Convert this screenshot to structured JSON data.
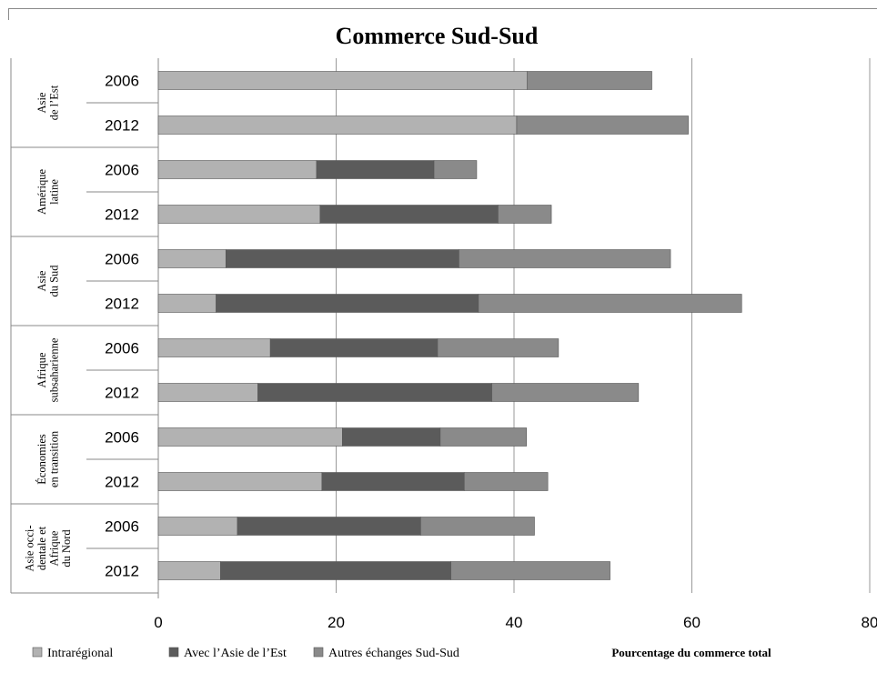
{
  "chart_data": {
    "type": "bar",
    "orientation": "horizontal",
    "stacked": true,
    "title": "Commerce Sud-Sud",
    "xlabel": "Pourcentage du commerce total",
    "xlim": [
      0,
      80
    ],
    "xticks": [
      "0",
      "20",
      "40",
      "60",
      "80"
    ],
    "grid": true,
    "legend_position": "bottom-left",
    "series": [
      {
        "name": "Intrarégional",
        "color": "#b2b2b2"
      },
      {
        "name": "Avec l’Asie de l’Est",
        "color": "#5b5b5b"
      },
      {
        "name": "Autres échanges Sud-Sud",
        "color": "#8a8a8a"
      }
    ],
    "groups": [
      {
        "region": [
          "Asie",
          "de l’Est"
        ],
        "rows": [
          {
            "year": "2006",
            "values": [
              41.5,
              0,
              14
            ]
          },
          {
            "year": "2012",
            "values": [
              40.3,
              0,
              19.3
            ]
          }
        ]
      },
      {
        "region": [
          "Amérique",
          "latine"
        ],
        "rows": [
          {
            "year": "2006",
            "values": [
              17.8,
              13.2,
              4.8
            ]
          },
          {
            "year": "2012",
            "values": [
              18.2,
              20,
              6
            ]
          }
        ]
      },
      {
        "region": [
          "Asie",
          "du Sud"
        ],
        "rows": [
          {
            "year": "2006",
            "values": [
              7.6,
              26.2,
              23.8
            ]
          },
          {
            "year": "2012",
            "values": [
              6.5,
              29.5,
              29.6
            ]
          }
        ]
      },
      {
        "region": [
          "Afrique",
          "subsaharienne"
        ],
        "rows": [
          {
            "year": "2006",
            "values": [
              12.6,
              18.8,
              13.6
            ]
          },
          {
            "year": "2012",
            "values": [
              11.2,
              26.3,
              16.5
            ]
          }
        ]
      },
      {
        "region": [
          "Économies",
          "en transition"
        ],
        "rows": [
          {
            "year": "2006",
            "values": [
              20.7,
              11,
              9.7
            ]
          },
          {
            "year": "2012",
            "values": [
              18.4,
              16,
              9.4
            ]
          }
        ]
      },
      {
        "region": [
          "Asie occi-",
          "dentale et",
          "Afrique",
          "du Nord"
        ],
        "rows": [
          {
            "year": "2006",
            "values": [
              8.9,
              20.6,
              12.8
            ]
          },
          {
            "year": "2012",
            "values": [
              7,
              25.9,
              17.9
            ]
          }
        ]
      }
    ]
  }
}
